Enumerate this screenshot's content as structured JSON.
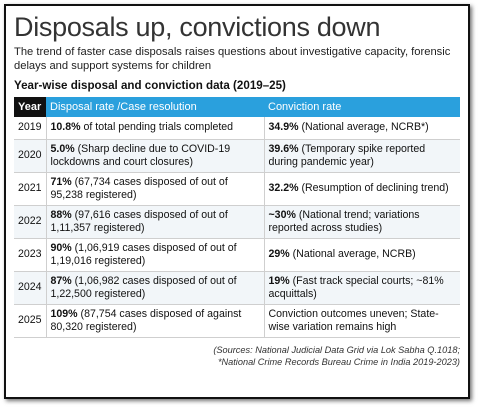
{
  "headline": "Disposals up, convictions down",
  "subtitle": "The trend of faster case disposals raises questions about investigative capacity, forensic delays and support systems for children",
  "section_title": "Year-wise disposal and conviction data (2019–25)",
  "table": {
    "headers": [
      "Year",
      "Disposal rate /Case resolution",
      "Conviction rate"
    ],
    "rows": [
      {
        "year": "2019",
        "disposal_bold": "10.8%",
        "disposal_rest": " of total pending trials completed",
        "conviction_bold": "34.9%",
        "conviction_rest": " (National average, NCRB*)"
      },
      {
        "year": "2020",
        "disposal_bold": "5.0%",
        "disposal_rest": " (Sharp decline due to COVID-19 lockdowns and court closures)",
        "conviction_bold": "39.6%",
        "conviction_rest": " (Temporary spike reported during pandemic year)"
      },
      {
        "year": "2021",
        "disposal_bold": "71%",
        "disposal_rest": " (67,734 cases disposed of out of 95,238 registered)",
        "conviction_bold": "32.2%",
        "conviction_rest": " (Resumption of declining trend)"
      },
      {
        "year": "2022",
        "disposal_bold": "88%",
        "disposal_rest": " (97,616 cases disposed of out of 1,11,357 registered)",
        "conviction_bold": "~30%",
        "conviction_rest": " (National trend; variations reported across studies)"
      },
      {
        "year": "2023",
        "disposal_bold": "90%",
        "disposal_rest": " (1,06,919 cases disposed of out of 1,19,016 registered)",
        "conviction_bold": "29%",
        "conviction_rest": " (National average, NCRB)"
      },
      {
        "year": "2024",
        "disposal_bold": "87%",
        "disposal_rest": " (1,06,982 cases disposed of out of 1,22,500 registered)",
        "conviction_bold": "19%",
        "conviction_rest": " (Fast track special courts; ~81% acquittals)"
      },
      {
        "year": "2025",
        "disposal_bold": "109%",
        "disposal_rest": " (87,754 cases disposed of against 80,320 registered)",
        "conviction_bold": "",
        "conviction_rest": "Conviction outcomes uneven; State-wise variation remains high"
      }
    ]
  },
  "sources": {
    "line1": "(Sources: National Judicial Data Grid via Lok Sabha Q.1018;",
    "line2": "*National Crime Records Bureau Crime in India 2019-2023)"
  },
  "colors": {
    "header_blue": "#2aa0dd",
    "year_header": "#111111"
  }
}
